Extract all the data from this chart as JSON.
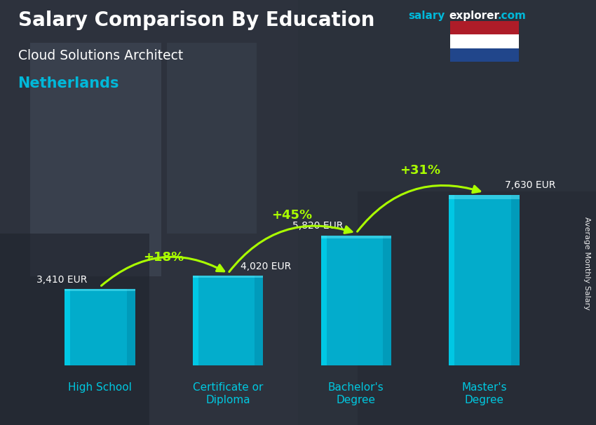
{
  "title": "Salary Comparison By Education",
  "subtitle": "Cloud Solutions Architect",
  "country": "Netherlands",
  "ylabel": "Average Monthly Salary",
  "categories": [
    "High School",
    "Certificate or\nDiploma",
    "Bachelor's\nDegree",
    "Master's\nDegree"
  ],
  "values": [
    3410,
    4020,
    5820,
    7630
  ],
  "bar_color_main": "#00b8d9",
  "bar_color_light": "#00d4f0",
  "bar_color_dark": "#0090b0",
  "bar_color_side": "#007fa0",
  "pct_changes": [
    "+18%",
    "+45%",
    "+31%"
  ],
  "salary_labels": [
    "3,410 EUR",
    "4,020 EUR",
    "5,820 EUR",
    "7,630 EUR"
  ],
  "salary_label_positions": [
    "left",
    "right",
    "left",
    "right"
  ],
  "title_color": "#ffffff",
  "subtitle_color": "#ffffff",
  "country_color": "#00b8d9",
  "pct_color": "#aaff00",
  "salary_label_color": "#ffffff",
  "tick_label_color": "#00c8e0",
  "bg_color": "#3a3f4a",
  "overlay_color": "#1a1f2a",
  "overlay_alpha": 0.55,
  "website_salary_color": "#00b8d9",
  "website_rest_color": "#ffffff",
  "flag_red": "#AE1C28",
  "flag_white": "#FFFFFF",
  "flag_blue": "#21468B",
  "ylim": [
    0,
    9500
  ],
  "bar_width": 0.55,
  "bar_alpha": 0.92
}
